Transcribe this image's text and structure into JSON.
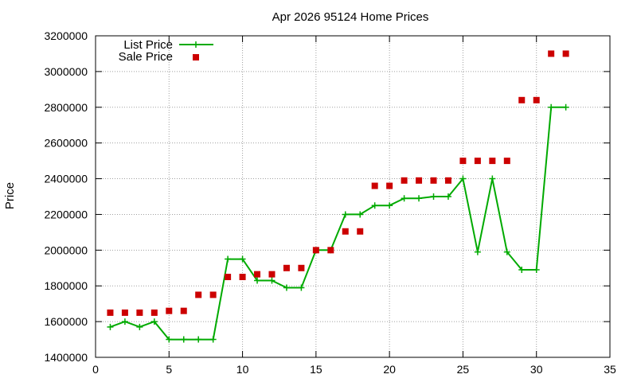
{
  "chart_data": {
    "type": "line",
    "title": "Apr 2026 95124 Home Prices",
    "xlabel": "",
    "ylabel": "Price",
    "xlim": [
      0,
      35
    ],
    "ylim": [
      1400000,
      3200000
    ],
    "xticks": [
      0,
      5,
      10,
      15,
      20,
      25,
      30,
      35
    ],
    "yticks": [
      1400000,
      1600000,
      1800000,
      2000000,
      2200000,
      2400000,
      2600000,
      2800000,
      3000000,
      3200000
    ],
    "grid": true,
    "legend_position": "top-left",
    "colors": {
      "list": "#00aa00",
      "sale": "#cc0000",
      "grid": "#a0a0a0"
    },
    "series": [
      {
        "name": "List Price",
        "style": "linespoints",
        "x": [
          1,
          2,
          3,
          4,
          5,
          6,
          7,
          8,
          9,
          10,
          11,
          12,
          13,
          14,
          15,
          16,
          17,
          18,
          19,
          20,
          21,
          22,
          23,
          24,
          25,
          26,
          27,
          28,
          29,
          30,
          31,
          32
        ],
        "y": [
          1570000,
          1600000,
          1570000,
          1600000,
          1500000,
          1500000,
          1500000,
          1500000,
          1950000,
          1950000,
          1830000,
          1830000,
          1790000,
          1790000,
          2000000,
          2000000,
          2200000,
          2200000,
          2250000,
          2250000,
          2290000,
          2290000,
          2300000,
          2300000,
          2400000,
          1990000,
          2400000,
          1990000,
          1890000,
          1890000,
          2800000,
          2800000
        ]
      },
      {
        "name": "Sale Price",
        "style": "points",
        "x": [
          1,
          2,
          3,
          4,
          5,
          6,
          7,
          8,
          9,
          10,
          11,
          12,
          13,
          14,
          15,
          16,
          17,
          18,
          19,
          20,
          21,
          22,
          23,
          24,
          25,
          26,
          27,
          28,
          29,
          30,
          31,
          32
        ],
        "y": [
          1650000,
          1650000,
          1650000,
          1650000,
          1660000,
          1660000,
          1750000,
          1750000,
          1850000,
          1850000,
          1865000,
          1865000,
          1900000,
          1900000,
          2000000,
          2000000,
          2105000,
          2105000,
          2360000,
          2360000,
          2390000,
          2390000,
          2390000,
          2390000,
          2500000,
          2500000,
          2500000,
          2500000,
          2840000,
          2840000,
          3100000,
          3100000
        ]
      }
    ]
  }
}
